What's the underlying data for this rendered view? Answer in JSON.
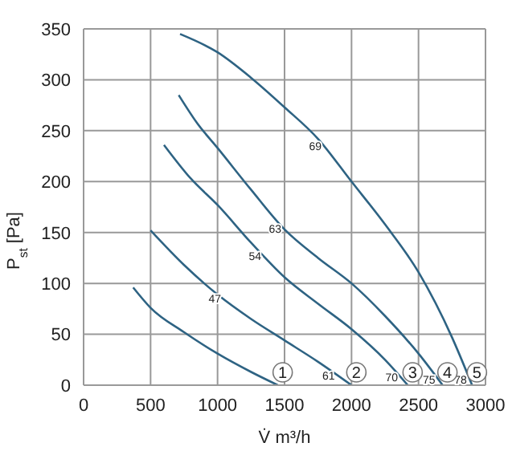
{
  "chart_data": {
    "type": "line",
    "xlabel": "V̇ m³/h",
    "ylabel": "P$_{st}$ [Pa]",
    "xlim": [
      0,
      3000
    ],
    "xticks": [
      0,
      500,
      1000,
      1500,
      2000,
      2500,
      3000
    ],
    "ylim": [
      0,
      350
    ],
    "yticks": [
      0,
      50,
      100,
      150,
      200,
      250,
      300,
      350
    ],
    "grid": true,
    "marker": "none",
    "line_style": "solid",
    "series": [
      {
        "name": "1",
        "color": "#2e6383",
        "x": [
          370,
          500,
          750,
          1000,
          1250,
          1450
        ],
        "values": [
          96,
          76,
          52,
          31,
          13,
          0
        ]
      },
      {
        "name": "2",
        "color": "#2e6383",
        "x": [
          500,
          750,
          1000,
          1250,
          1500,
          1750,
          2000
        ],
        "values": [
          152,
          118,
          89,
          65,
          44,
          23,
          0
        ]
      },
      {
        "name": "3",
        "color": "#2e6383",
        "x": [
          600,
          800,
          1000,
          1250,
          1500,
          1750,
          2000,
          2250,
          2420
        ],
        "values": [
          236,
          203,
          177,
          140,
          106,
          80,
          55,
          25,
          0
        ]
      },
      {
        "name": "4",
        "color": "#2e6383",
        "x": [
          710,
          850,
          1000,
          1250,
          1500,
          1750,
          2000,
          2250,
          2500,
          2680
        ],
        "values": [
          285,
          257,
          233,
          192,
          153,
          125,
          100,
          68,
          31,
          0
        ]
      },
      {
        "name": "5",
        "color": "#2e6383",
        "x": [
          720,
          1000,
          1250,
          1500,
          1750,
          2000,
          2250,
          2500,
          2750,
          2900
        ],
        "values": [
          345,
          327,
          302,
          273,
          242,
          200,
          158,
          111,
          47,
          0
        ]
      }
    ],
    "annotations": [
      {
        "text": "69",
        "x": 1800,
        "y": 234
      },
      {
        "text": "63",
        "x": 1500,
        "y": 153
      },
      {
        "text": "54",
        "x": 1350,
        "y": 126
      },
      {
        "text": "47",
        "x": 1050,
        "y": 84
      },
      {
        "text": "61",
        "x": 1900,
        "y": 9
      },
      {
        "text": "70",
        "x": 2370,
        "y": 7
      },
      {
        "text": "75",
        "x": 2650,
        "y": 5
      },
      {
        "text": "78",
        "x": 2885,
        "y": 5
      }
    ]
  }
}
